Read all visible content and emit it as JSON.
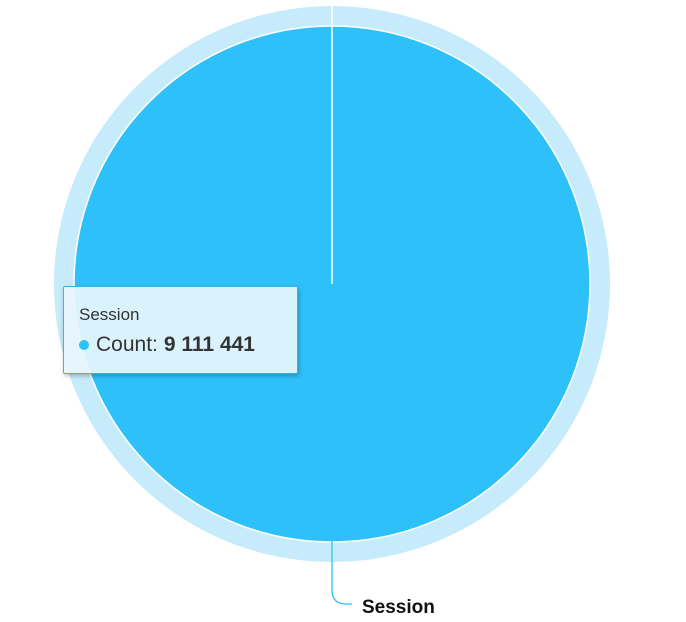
{
  "chart_data": {
    "type": "pie",
    "title": "",
    "categories": [
      "Session"
    ],
    "series": [
      {
        "values": [
          9111441
        ]
      }
    ],
    "legend": "none",
    "data_labels": [
      "Session"
    ]
  },
  "tooltip": {
    "title": "Session",
    "metric_label": "Count:",
    "value": "9 111 441"
  },
  "colors": {
    "slice": "#2ec0f9",
    "halo": "#c6ebfb",
    "label_line": "#2ec0f9",
    "label_text": "#111111"
  }
}
